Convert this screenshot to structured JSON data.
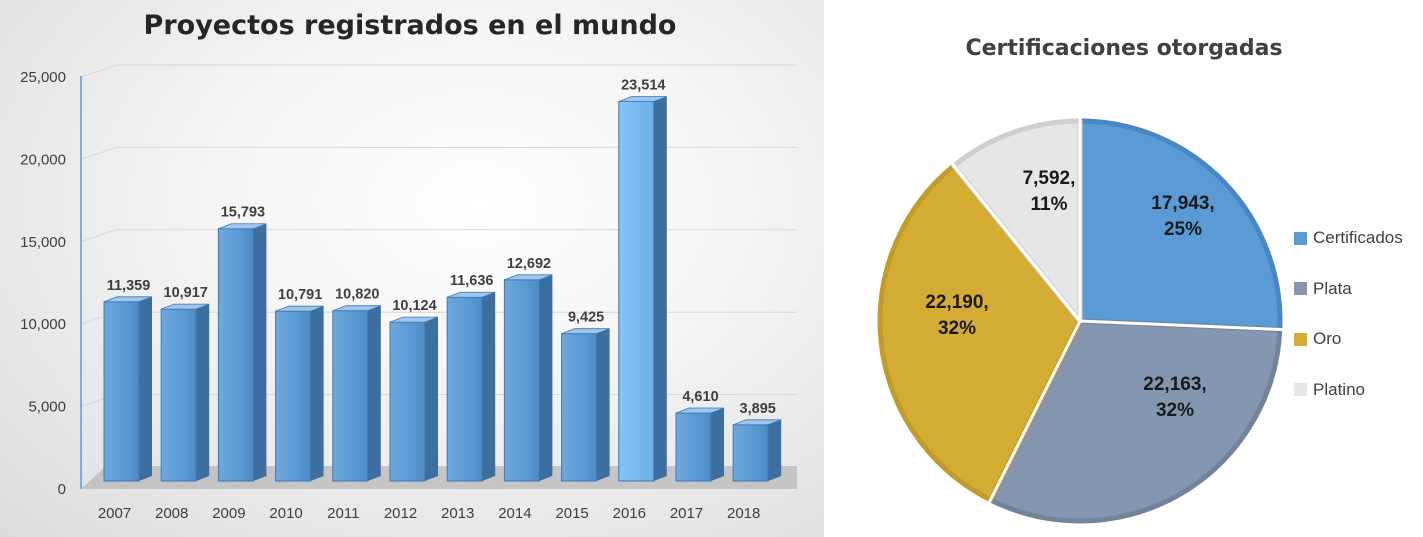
{
  "chart_data": [
    {
      "type": "bar",
      "title": "Proyectos registrados en el mundo",
      "categories": [
        "2007",
        "2008",
        "2009",
        "2010",
        "2011",
        "2012",
        "2013",
        "2014",
        "2015",
        "2016",
        "2017",
        "2018"
      ],
      "values": [
        11359,
        10917,
        15793,
        10791,
        10820,
        10124,
        11636,
        12692,
        9425,
        23514,
        4610,
        3895
      ],
      "value_labels": [
        "11,359",
        "10,917",
        "15,793",
        "10,791",
        "10,820",
        "10,124",
        "11,636",
        "12,692",
        "9,425",
        "23,514",
        "4,610",
        "3,895"
      ],
      "yticks": [
        0,
        5000,
        10000,
        15000,
        20000,
        25000
      ],
      "ytick_labels": [
        "0",
        "5,000",
        "10,000",
        "15,000",
        "20,000",
        "25,000"
      ],
      "ylim": [
        0,
        25000
      ],
      "xlabel": "",
      "ylabel": "",
      "grid": true,
      "legend": "none",
      "style": "3d-column",
      "colors": {
        "bar_front": "#5b9bd5",
        "bar_top": "#9fc7ee",
        "bar_side": "#3c6e9f",
        "highlight_front": "#79b9f0",
        "label": "#404040"
      }
    },
    {
      "type": "pie",
      "title": "Certificaciones otorgadas",
      "categories": [
        "Certificados",
        "Plata",
        "Oro",
        "Platino"
      ],
      "values": [
        17943,
        22163,
        22190,
        7592
      ],
      "percent": [
        25,
        32,
        32,
        11
      ],
      "data_labels": [
        {
          "value": "17,943,",
          "percent": "25%"
        },
        {
          "value": "22,163,",
          "percent": "32%"
        },
        {
          "value": "22,190,",
          "percent": "32%"
        },
        {
          "value": "7,592,",
          "percent": "11%"
        }
      ],
      "colors": [
        "#5b9bd5",
        "#8496b0",
        "#d4ac33",
        "#e7e6e6"
      ],
      "edge_colors": [
        "#4a86c2",
        "#73839b",
        "#c29c2a",
        "#cfcfcf"
      ],
      "legend": "right"
    }
  ]
}
